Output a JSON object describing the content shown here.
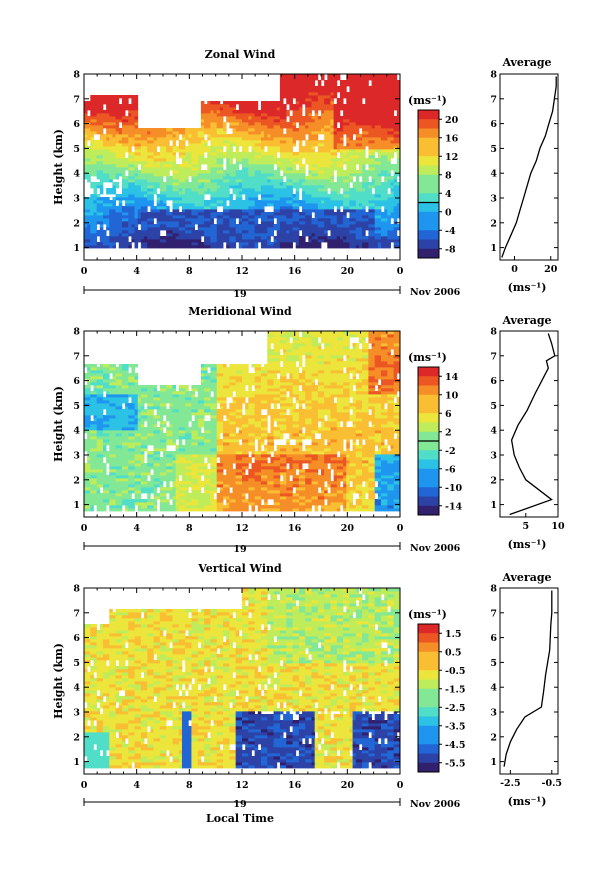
{
  "chart_data": [
    {
      "type": "heatmap",
      "title": "Zonal Wind",
      "ylabel": "Height (km)",
      "ylim": [
        0.5,
        8
      ],
      "yticks": [
        "1",
        "2",
        "3",
        "4",
        "5",
        "6",
        "7",
        "8"
      ],
      "xlim": [
        0,
        24
      ],
      "xticks": [
        "0",
        "4",
        "8",
        "12",
        "16",
        "20",
        "0"
      ],
      "day_label": "19",
      "date_label": "Nov 2006",
      "colorbar": {
        "unit": "(ms⁻¹)",
        "ticks": [
          "20",
          "16",
          "12",
          "8",
          "4",
          "0",
          "-4",
          "-8"
        ],
        "min": -10,
        "max": 22
      },
      "profile": {
        "title": "Average",
        "xlabel": "(ms⁻¹)",
        "xticks": [
          "0",
          "20"
        ],
        "xlim": [
          -8,
          24
        ],
        "ylim": [
          0.5,
          8
        ],
        "yticks": [
          "1",
          "2",
          "3",
          "4",
          "5",
          "6",
          "7",
          "8"
        ],
        "points": [
          [
            -7,
            0.6
          ],
          [
            -5,
            1.0
          ],
          [
            -2,
            1.5
          ],
          [
            1,
            2.0
          ],
          [
            3,
            2.5
          ],
          [
            5,
            3.0
          ],
          [
            7,
            3.5
          ],
          [
            9,
            4.0
          ],
          [
            12,
            4.5
          ],
          [
            14,
            5.0
          ],
          [
            17,
            5.5
          ],
          [
            19,
            6.0
          ],
          [
            21,
            6.5
          ],
          [
            22,
            7.0
          ],
          [
            23,
            7.5
          ],
          [
            23,
            7.9
          ]
        ]
      }
    },
    {
      "type": "heatmap",
      "title": "Meridional Wind",
      "ylabel": "Height (km)",
      "ylim": [
        0.5,
        8
      ],
      "yticks": [
        "1",
        "2",
        "3",
        "4",
        "5",
        "6",
        "7",
        "8"
      ],
      "xlim": [
        0,
        24
      ],
      "xticks": [
        "0",
        "4",
        "8",
        "12",
        "16",
        "20",
        "0"
      ],
      "day_label": "19",
      "date_label": "Nov 2006",
      "colorbar": {
        "unit": "(ms⁻¹)",
        "ticks": [
          "14",
          "10",
          "6",
          "2",
          "-2",
          "-6",
          "-10",
          "-14"
        ],
        "min": -16,
        "max": 16
      },
      "profile": {
        "title": "Average",
        "xlabel": "(ms⁻¹)",
        "xticks": [
          "5",
          "10"
        ],
        "xlim": [
          1,
          10
        ],
        "ylim": [
          0.5,
          8
        ],
        "yticks": [
          "1",
          "2",
          "3",
          "4",
          "5",
          "6",
          "7",
          "8"
        ],
        "points": [
          [
            2.5,
            0.6
          ],
          [
            9,
            1.2
          ],
          [
            7,
            1.6
          ],
          [
            5,
            2.0
          ],
          [
            4,
            2.5
          ],
          [
            3.2,
            3.0
          ],
          [
            2.8,
            3.6
          ],
          [
            3.8,
            4.2
          ],
          [
            5.2,
            4.8
          ],
          [
            6.5,
            5.5
          ],
          [
            7.5,
            6.0
          ],
          [
            8.5,
            6.5
          ],
          [
            8.2,
            6.8
          ],
          [
            9.5,
            7.0
          ],
          [
            9,
            7.5
          ],
          [
            8.5,
            7.9
          ]
        ]
      }
    },
    {
      "type": "heatmap",
      "title": "Vertical Wind",
      "ylabel": "Height (km)",
      "xlabel": "Local Time",
      "ylim": [
        0.5,
        8
      ],
      "yticks": [
        "1",
        "2",
        "3",
        "4",
        "5",
        "6",
        "7",
        "8"
      ],
      "xlim": [
        0,
        24
      ],
      "xticks": [
        "0",
        "4",
        "8",
        "12",
        "16",
        "20",
        "0"
      ],
      "day_label": "19",
      "date_label": "Nov 2006",
      "colorbar": {
        "unit": "(ms⁻¹)",
        "ticks": [
          "1.5",
          "0.5",
          "-0.5",
          "-1.5",
          "-2.5",
          "-3.5",
          "-4.5",
          "-5.5"
        ],
        "min": -6,
        "max": 2
      },
      "profile": {
        "title": "Average",
        "xlabel": "(ms⁻¹)",
        "xticks": [
          "-2.5",
          "-0.5"
        ],
        "xlim": [
          -3,
          -0.2
        ],
        "ylim": [
          0.5,
          8
        ],
        "yticks": [
          "1",
          "2",
          "3",
          "4",
          "5",
          "6",
          "7",
          "8"
        ],
        "points": [
          [
            -2.8,
            0.8
          ],
          [
            -2.7,
            1.3
          ],
          [
            -2.5,
            1.8
          ],
          [
            -2.2,
            2.3
          ],
          [
            -1.8,
            2.8
          ],
          [
            -1.0,
            3.2
          ],
          [
            -0.9,
            3.8
          ],
          [
            -0.8,
            4.5
          ],
          [
            -0.6,
            5.5
          ],
          [
            -0.55,
            6.5
          ],
          [
            -0.5,
            7.0
          ],
          [
            -0.5,
            7.9
          ]
        ]
      }
    }
  ]
}
